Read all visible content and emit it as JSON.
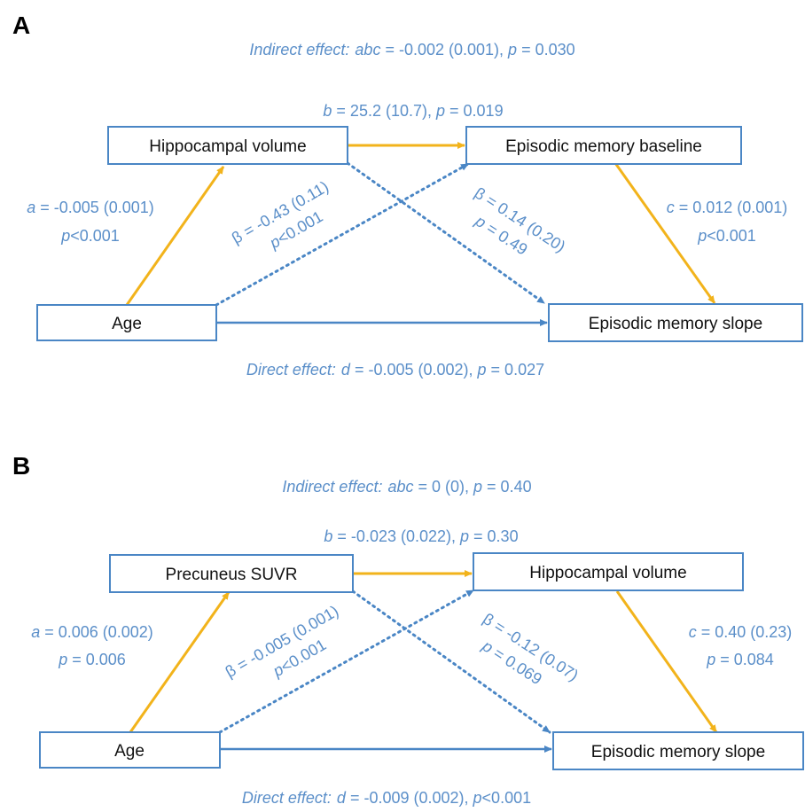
{
  "colors": {
    "box_stroke": "#4a86c5",
    "label_text": "#5b8fc9",
    "path_yellow": "#f2b31b",
    "path_blue": "#4a86c5"
  },
  "panels": [
    {
      "letter": "A",
      "indirect": {
        "prefix": "Indirect effect:",
        "sym": "abc",
        "val": " = -0.002 (0.001), ",
        "p": "p",
        "pval": " = 0.030"
      },
      "nodes": {
        "predictor": "Age",
        "mediator": "Hippocampal volume",
        "second_mediator": "Episodic memory baseline",
        "outcome": "Episodic memory slope"
      },
      "path_a": {
        "line1_sym": "a",
        "line1_val": " = -0.005 (0.001)",
        "line2_sym": "p",
        "line2_val": "<0.001"
      },
      "path_b": {
        "sym": "b",
        "val": " = 25.2 (10.7), ",
        "p": "p",
        "pval": " = 0.019"
      },
      "path_c": {
        "line1_sym": "c",
        "line1_val": " = 0.012 (0.001)",
        "line2_sym": "p",
        "line2_val": "<0.001"
      },
      "beta_left": {
        "line1": "β = -0.43 (0.11)",
        "line2_sym": "p",
        "line2_val": "<0.001"
      },
      "beta_right": {
        "line1": "β = 0.14 (0.20)",
        "line2_sym": "p",
        "line2_val": " = 0.49"
      },
      "direct": {
        "prefix": "Direct effect:",
        "sym": "d",
        "val": " = -0.005 (0.002), ",
        "p": "p",
        "pval": " = 0.027"
      }
    },
    {
      "letter": "B",
      "indirect": {
        "prefix": "Indirect effect:",
        "sym": "abc",
        "val": " = 0 (0), ",
        "p": "p",
        "pval": " = 0.40"
      },
      "nodes": {
        "predictor": "Age",
        "mediator": "Precuneus SUVR",
        "second_mediator": "Hippocampal volume",
        "outcome": "Episodic memory slope"
      },
      "path_a": {
        "line1_sym": "a",
        "line1_val": " = 0.006 (0.002)",
        "line2_sym": "p",
        "line2_val": " = 0.006"
      },
      "path_b": {
        "sym": "b",
        "val": " = -0.023 (0.022), ",
        "p": "p",
        "pval": " = 0.30"
      },
      "path_c": {
        "line1_sym": "c",
        "line1_val": " = 0.40 (0.23)",
        "line2_sym": "p",
        "line2_val": " = 0.084"
      },
      "beta_left": {
        "line1": "β = -0.005 (0.001)",
        "line2_sym": "p",
        "line2_val": "<0.001"
      },
      "beta_right": {
        "line1": "β = -0.12 (0.07)",
        "line2_sym": "p",
        "line2_val": " = 0.069"
      },
      "direct": {
        "prefix": "Direct effect:",
        "sym": "d",
        "val": " = -0.009 (0.002), ",
        "p": "p",
        "pval": "<0.001"
      }
    }
  ]
}
